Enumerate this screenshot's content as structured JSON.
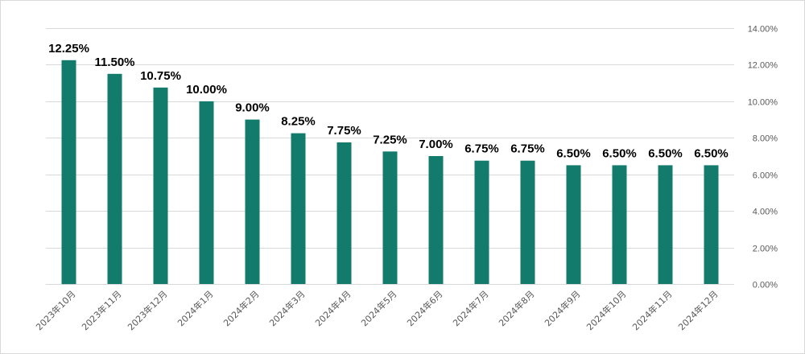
{
  "chart_data": {
    "type": "bar",
    "title": "",
    "xlabel": "",
    "ylabel": "",
    "categories": [
      "2023年10月",
      "2023年11月",
      "2023年12月",
      "2024年1月",
      "2024年2月",
      "2024年3月",
      "2024年4月",
      "2024年5月",
      "2024年6月",
      "2024年7月",
      "2024年8月",
      "2024年9月",
      "2024年10月",
      "2024年11月",
      "2024年12月"
    ],
    "values": [
      12.25,
      11.5,
      10.75,
      10.0,
      9.0,
      8.25,
      7.75,
      7.25,
      7.0,
      6.75,
      6.75,
      6.5,
      6.5,
      6.5,
      6.5
    ],
    "value_labels": [
      "12.25%",
      "11.50%",
      "10.75%",
      "10.00%",
      "9.00%",
      "8.25%",
      "7.75%",
      "7.25%",
      "7.00%",
      "6.75%",
      "6.75%",
      "6.50%",
      "6.50%",
      "6.50%",
      "6.50%"
    ],
    "ylim": [
      0,
      14
    ],
    "yticks": [
      0,
      2,
      4,
      6,
      8,
      10,
      12,
      14
    ],
    "ytick_labels": [
      "0.00%",
      "2.00%",
      "4.00%",
      "6.00%",
      "8.00%",
      "10.00%",
      "12.00%",
      "14.00%"
    ],
    "y_axis_side": "right",
    "grid": true,
    "legend": "none",
    "bar_color": "#127b6b"
  }
}
